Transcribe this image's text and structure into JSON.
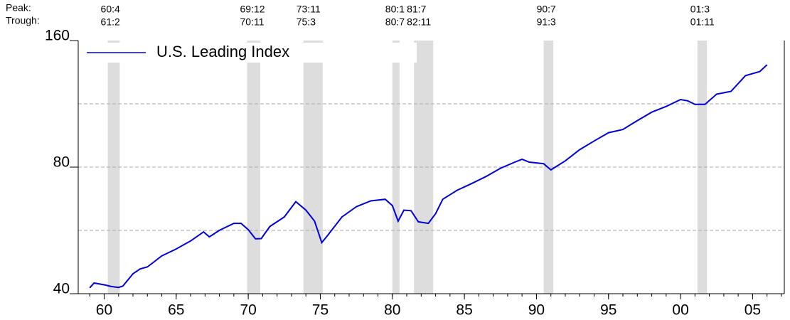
{
  "chart_data": {
    "type": "line",
    "peak_label": "Peak:",
    "trough_label": "Trough:",
    "recessions": [
      {
        "peak": "60:4",
        "trough": "61:2",
        "start": 1960.25,
        "end": 1961.08
      },
      {
        "peak": "69:12",
        "trough": "70:11",
        "start": 1969.92,
        "end": 1970.83
      },
      {
        "peak": "73:11",
        "trough": "75:3",
        "start": 1973.83,
        "end": 1975.17
      },
      {
        "peak": "80:1",
        "trough": "80:7",
        "start": 1980.0,
        "end": 1980.5
      },
      {
        "peak": "81:7",
        "trough": "82:11",
        "start": 1981.5,
        "end": 1982.83
      },
      {
        "peak": "90:7",
        "trough": "91:3",
        "start": 1990.5,
        "end": 1991.17
      },
      {
        "peak": "01:3",
        "trough": "01:11",
        "start": 2001.17,
        "end": 2001.83
      }
    ],
    "recession_color": "#dddddd",
    "x": [
      1959.0,
      1959.3,
      1960.0,
      1960.5,
      1961.0,
      1961.3,
      1962.0,
      1962.5,
      1963.0,
      1964.0,
      1965.0,
      1966.0,
      1966.9,
      1967.3,
      1968.0,
      1969.0,
      1969.5,
      1970.0,
      1970.5,
      1970.9,
      1971.5,
      1972.5,
      1973.3,
      1974.0,
      1974.6,
      1975.1,
      1975.5,
      1976.5,
      1977.5,
      1978.5,
      1979.5,
      1980.0,
      1980.4,
      1980.8,
      1981.3,
      1981.8,
      1982.5,
      1983.0,
      1983.5,
      1984.5,
      1985.5,
      1986.5,
      1987.5,
      1988.5,
      1989.0,
      1989.5,
      1990.5,
      1991.0,
      1992.0,
      1993.0,
      1994.0,
      1995.0,
      1996.0,
      1997.0,
      1998.0,
      1999.0,
      2000.0,
      2000.5,
      2001.0,
      2001.7,
      2002.5,
      2003.5,
      2004.5,
      2005.5,
      2006.0
    ],
    "series": [
      {
        "name": "U.S. Leading Index",
        "color": "#0000dd",
        "values": [
          41.3,
          42.4,
          42.0,
          41.6,
          41.4,
          41.7,
          44.6,
          45.8,
          46.3,
          49.2,
          51.1,
          53.4,
          56.1,
          54.6,
          56.6,
          58.8,
          58.8,
          56.8,
          54.0,
          54.1,
          57.8,
          60.9,
          66.2,
          63.2,
          59.5,
          52.9,
          55.0,
          60.9,
          64.4,
          66.5,
          67.1,
          64.8,
          59.5,
          63.2,
          63.0,
          59.3,
          58.8,
          62.0,
          67.1,
          70.5,
          73.1,
          76.0,
          79.5,
          82.2,
          83.5,
          82.2,
          81.5,
          78.8,
          82.8,
          88.0,
          92.3,
          96.6,
          98.3,
          103.2,
          108.1,
          111.5,
          115.8,
          115.0,
          112.8,
          112.8,
          119.3,
          121.1,
          132.0,
          135.0,
          140.1
        ]
      }
    ],
    "xlim": [
      1958.2,
      2007.2
    ],
    "xticks": [
      {
        "value": 1960,
        "label": "60"
      },
      {
        "value": 1965,
        "label": "65"
      },
      {
        "value": 1970,
        "label": "70"
      },
      {
        "value": 1975,
        "label": "75"
      },
      {
        "value": 1980,
        "label": "80"
      },
      {
        "value": 1985,
        "label": "85"
      },
      {
        "value": 1990,
        "label": "90"
      },
      {
        "value": 1995,
        "label": "95"
      },
      {
        "value": 2000,
        "label": "00"
      },
      {
        "value": 2005,
        "label": "05"
      }
    ],
    "ylim": [
      40,
      160
    ],
    "yticks": [
      40,
      80,
      160
    ],
    "minor_grid": [
      56.57,
      80,
      113.14
    ],
    "log_scale": true,
    "legend": "top-left"
  }
}
